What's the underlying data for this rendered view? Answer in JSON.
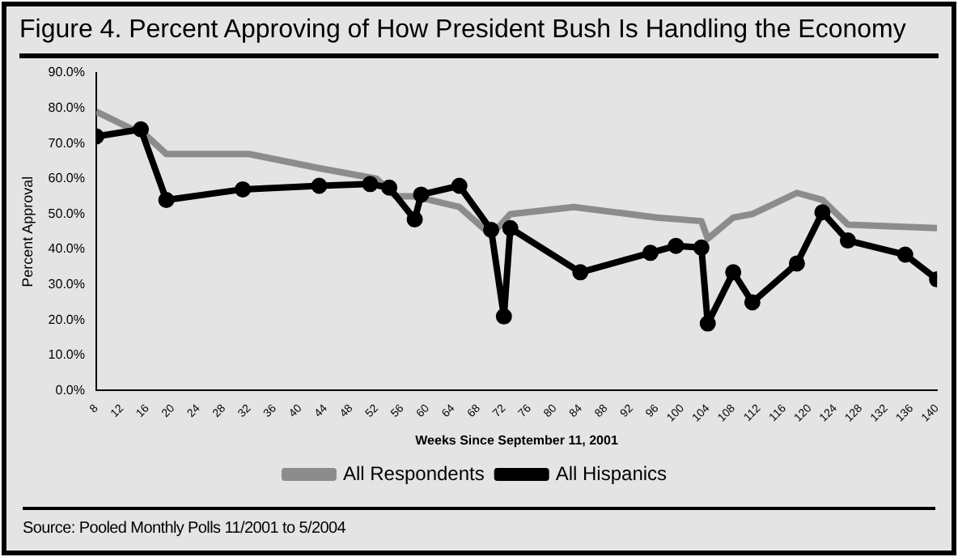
{
  "chart_data": {
    "type": "line",
    "title": "Figure 4. Percent Approving of How President Bush Is Handling the Economy",
    "xlabel": "Weeks Since September 11, 2001",
    "ylabel": "Percent Approval",
    "annotations": [
      "Source: Pooled Monthly Polls 11/2001 to 5/2004"
    ],
    "xlim": [
      8,
      140
    ],
    "xticks": [
      8,
      12,
      16,
      20,
      24,
      28,
      32,
      36,
      40,
      44,
      48,
      52,
      56,
      60,
      64,
      68,
      72,
      76,
      80,
      84,
      88,
      92,
      96,
      100,
      104,
      108,
      112,
      116,
      120,
      124,
      128,
      132,
      136,
      140
    ],
    "ylim": [
      0,
      90
    ],
    "yticks": [
      {
        "value": 0,
        "label": "0.0%"
      },
      {
        "value": 10,
        "label": "10.0%"
      },
      {
        "value": 20,
        "label": "20.0%"
      },
      {
        "value": 30,
        "label": "30.0%"
      },
      {
        "value": 40,
        "label": "40.0%"
      },
      {
        "value": 50,
        "label": "50.0%"
      },
      {
        "value": 60,
        "label": "60.0%"
      },
      {
        "value": 70,
        "label": "70.0%"
      },
      {
        "value": 80,
        "label": "80.0%"
      },
      {
        "value": 90,
        "label": "90.0%"
      }
    ],
    "grid": false,
    "legend": "bottom",
    "series": [
      {
        "name": "All Respondents",
        "color": "#8c8c8c",
        "marker": "none",
        "x": [
          8,
          16,
          19,
          32,
          43,
          52,
          55,
          58,
          65,
          70,
          73,
          83,
          96,
          103,
          104,
          108,
          111,
          118,
          122,
          126,
          140
        ],
        "values": [
          79,
          72,
          67,
          67,
          63,
          60,
          55,
          55,
          52,
          44,
          50,
          52,
          49,
          48,
          43,
          49,
          50,
          56,
          54,
          47,
          46
        ]
      },
      {
        "name": "All Hispanics",
        "color": "#000000",
        "marker": "circle",
        "x": [
          8,
          15,
          19,
          31,
          43,
          51,
          54,
          58,
          59,
          65,
          70,
          72,
          73,
          84,
          95,
          99,
          103,
          104,
          108,
          111,
          118,
          122,
          126,
          135,
          140
        ],
        "values": [
          72,
          74,
          54,
          57,
          58,
          58.5,
          57.5,
          48.5,
          55.5,
          58,
          45.5,
          21,
          46,
          33.5,
          39,
          41,
          40.5,
          19,
          33.5,
          25,
          36,
          50.5,
          42.5,
          38.5,
          31.5
        ]
      }
    ]
  }
}
